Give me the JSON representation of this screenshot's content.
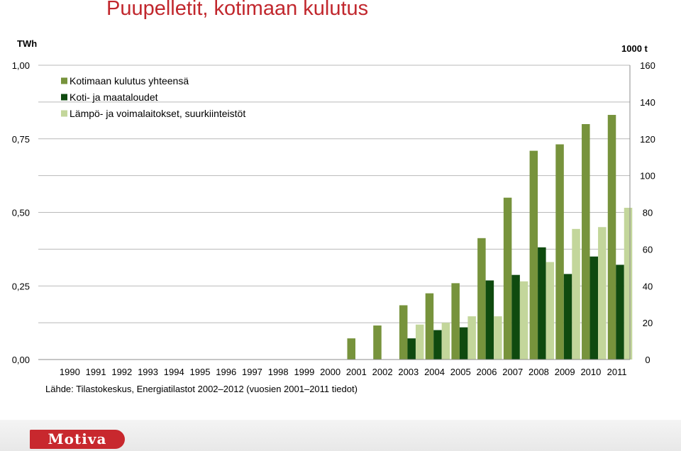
{
  "slide": {
    "title": "Puupelletit, kotimaan kulutus",
    "source_note": "Lähde: Tilastokeskus, Energiatilastot 2002–2012 (vuosien 2001–2011 tiedot)",
    "logo_text": "Motiva"
  },
  "chart_data": {
    "type": "bar",
    "title": "Puupelletit, kotimaan kulutus",
    "y_left_label": "TWh",
    "y_right_label": "1000 t",
    "y_left_ticks": [
      "1,00",
      "0,75",
      "0,50",
      "0,25",
      "0,00"
    ],
    "y_right_ticks": [
      "160",
      "140",
      "120",
      "100",
      "80",
      "60",
      "40",
      "20",
      "0"
    ],
    "ylim_left": [
      0,
      1.0
    ],
    "ylim_right": [
      0,
      160
    ],
    "grid": true,
    "legend_position": "top-left",
    "categories": [
      "1990",
      "1991",
      "1992",
      "1993",
      "1994",
      "1995",
      "1996",
      "1997",
      "1998",
      "1999",
      "2000",
      "2001",
      "2002",
      "2003",
      "2004",
      "2005",
      "2006",
      "2007",
      "2008",
      "2009",
      "2010",
      "2011"
    ],
    "series": [
      {
        "name": "Kotimaan kulutus yhteensä",
        "color": "#77933c",
        "axis": "right",
        "values": [
          null,
          null,
          null,
          null,
          null,
          null,
          null,
          null,
          null,
          null,
          null,
          11.5,
          18.5,
          29.5,
          36,
          41.5,
          66,
          88,
          113.5,
          117,
          128,
          133
        ]
      },
      {
        "name": "Koti- ja maataloudet",
        "color": "#0f4a0f",
        "axis": "right",
        "values": [
          null,
          null,
          null,
          null,
          null,
          null,
          null,
          null,
          null,
          null,
          null,
          null,
          null,
          11.5,
          16,
          17.5,
          43,
          46,
          61,
          46.5,
          56,
          51.5
        ]
      },
      {
        "name": "Lämpö- ja voimalaitokset, suurkiinteistöt",
        "color": "#c3d69b",
        "axis": "right",
        "values": [
          null,
          null,
          null,
          null,
          null,
          null,
          null,
          null,
          null,
          null,
          null,
          null,
          null,
          19,
          20,
          23.5,
          23.5,
          42.5,
          53,
          71,
          72,
          82.5
        ]
      }
    ]
  }
}
